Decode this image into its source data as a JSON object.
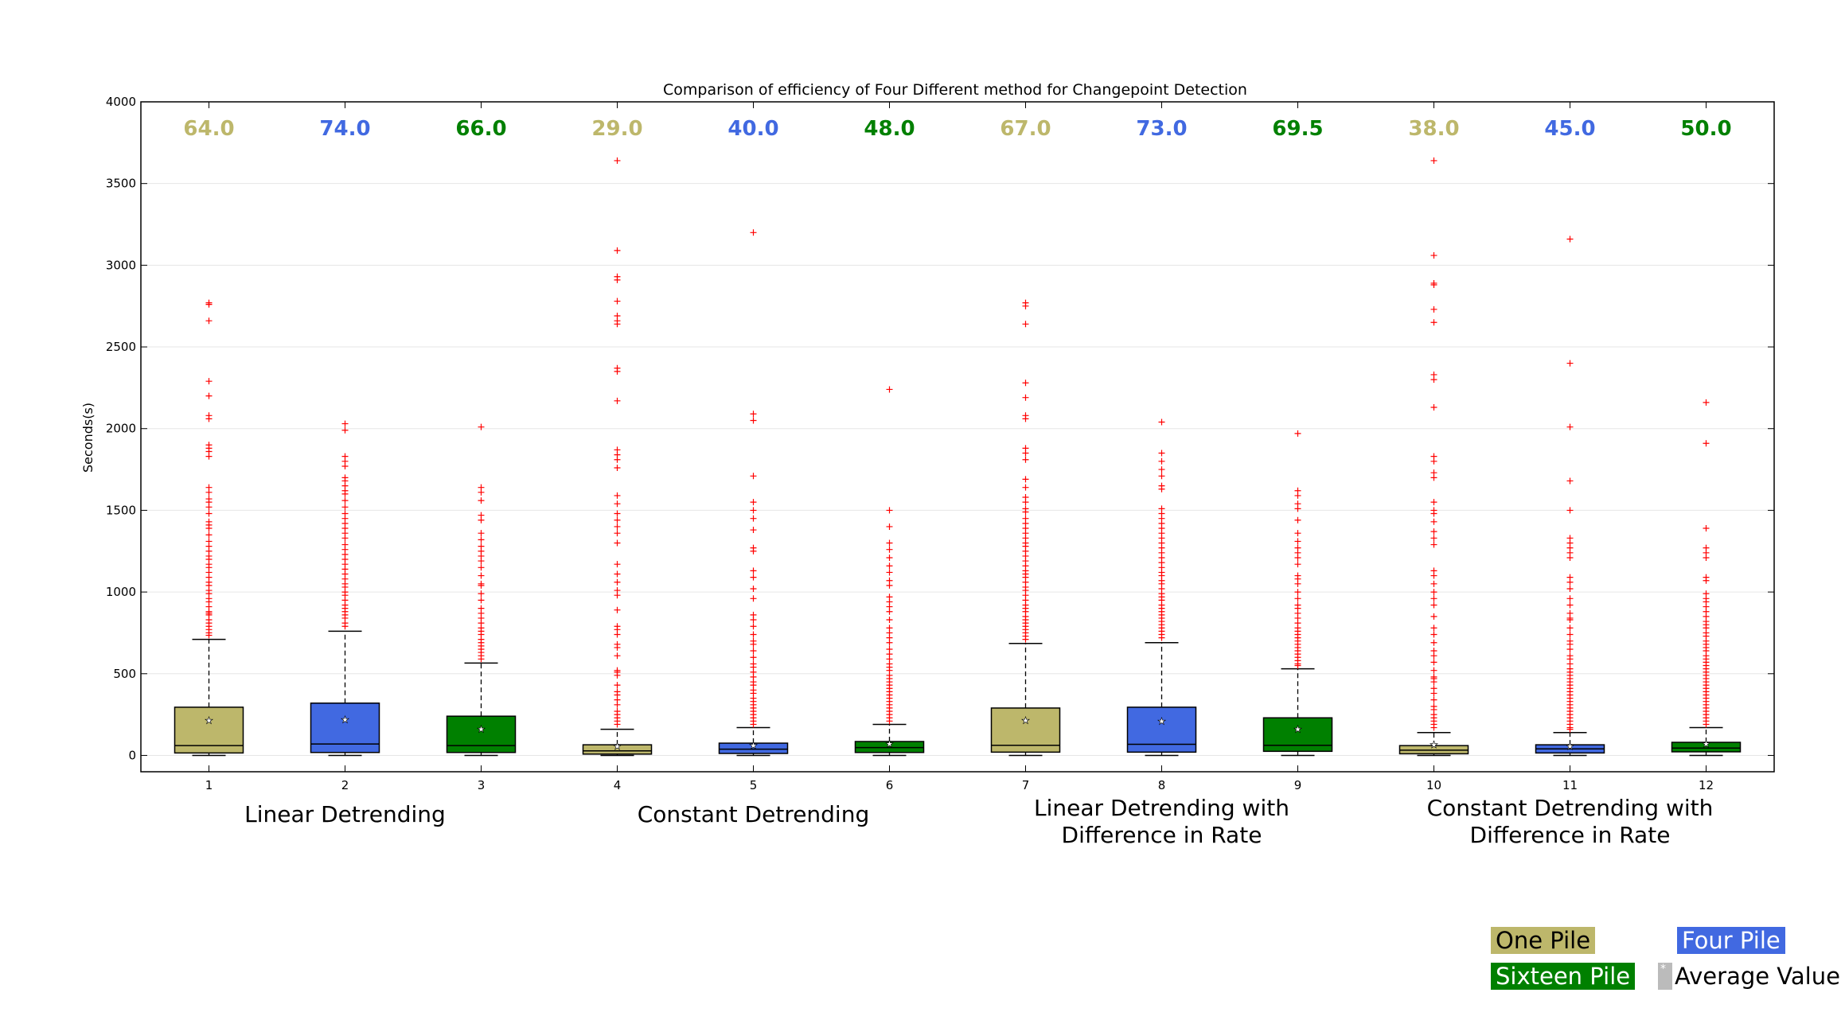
{
  "chart_data": {
    "type": "box",
    "title": "Comparison of efficiency of Four Different method for Changepoint Detection",
    "ylabel": "Seconds(s)",
    "xlabel": "",
    "ylim": [
      -100,
      4000
    ],
    "yticks": [
      0,
      500,
      1000,
      1500,
      2000,
      2500,
      3000,
      3500,
      4000
    ],
    "categories": [
      "1",
      "2",
      "3",
      "4",
      "5",
      "6",
      "7",
      "8",
      "9",
      "10",
      "11",
      "12"
    ],
    "group_labels": [
      {
        "lines": [
          "Linear Detrending"
        ],
        "center": 2
      },
      {
        "lines": [
          "Constant Detrending"
        ],
        "center": 5
      },
      {
        "lines": [
          "Linear Detrending with",
          "Difference in Rate"
        ],
        "center": 8
      },
      {
        "lines": [
          "Constant Detrending with",
          "Difference in Rate"
        ],
        "center": 11
      }
    ],
    "top_labels": [
      "64.0",
      "74.0",
      "66.0",
      "29.0",
      "40.0",
      "48.0",
      "67.0",
      "73.0",
      "69.5",
      "38.0",
      "45.0",
      "50.0"
    ],
    "colors": {
      "one_pile": "#BDB76B",
      "four_pile": "#4169E1",
      "sixteen_pile": "#008000",
      "outlier": "#ff0000"
    },
    "series_order": [
      "one_pile",
      "four_pile",
      "sixteen_pile",
      "one_pile",
      "four_pile",
      "sixteen_pile",
      "one_pile",
      "four_pile",
      "sixteen_pile",
      "one_pile",
      "four_pile",
      "sixteen_pile"
    ],
    "boxes": [
      {
        "whislo": 0,
        "q1": 15,
        "med": 60,
        "q3": 295,
        "whishi": 710,
        "mean": 220,
        "fliers": [
          2770,
          2760,
          2660,
          2290,
          2200,
          2080,
          2060,
          1900,
          1880,
          1860,
          1830,
          1640,
          1610,
          1570,
          1550,
          1520,
          1480,
          1430,
          1410,
          1390,
          1350,
          1310,
          1280,
          1250,
          1220,
          1200,
          1170,
          1150,
          1120,
          1090,
          1060,
          1040,
          1010,
          990,
          960,
          940,
          910,
          880,
          870,
          860,
          830,
          810,
          790,
          770,
          750,
          735
        ]
      },
      {
        "whislo": 0,
        "q1": 18,
        "med": 70,
        "q3": 320,
        "whishi": 760,
        "mean": 225,
        "fliers": [
          2030,
          1990,
          1830,
          1800,
          1770,
          1700,
          1680,
          1650,
          1620,
          1600,
          1560,
          1520,
          1480,
          1450,
          1420,
          1390,
          1360,
          1330,
          1290,
          1260,
          1230,
          1200,
          1170,
          1140,
          1110,
          1080,
          1050,
          1030,
          1000,
          980,
          950,
          920,
          900,
          880,
          860,
          840,
          810,
          790
        ]
      },
      {
        "whislo": 0,
        "q1": 18,
        "med": 60,
        "q3": 240,
        "whishi": 565,
        "mean": 165,
        "fliers": [
          2010,
          1640,
          1610,
          1560,
          1470,
          1440,
          1360,
          1320,
          1280,
          1250,
          1220,
          1190,
          1150,
          1100,
          1050,
          1040,
          990,
          950,
          900,
          870,
          840,
          810,
          780,
          760,
          740,
          710,
          690,
          670,
          650,
          630,
          610,
          590
        ]
      },
      {
        "whislo": 0,
        "q1": 8,
        "med": 28,
        "q3": 65,
        "whishi": 160,
        "mean": 60,
        "fliers": [
          3640,
          3090,
          2930,
          2910,
          2780,
          2690,
          2660,
          2640,
          2370,
          2350,
          2170,
          1870,
          1840,
          1810,
          1760,
          1590,
          1540,
          1480,
          1440,
          1400,
          1360,
          1300,
          1170,
          1110,
          1060,
          1010,
          980,
          890,
          790,
          770,
          740,
          680,
          660,
          610,
          520,
          510,
          490,
          430,
          390,
          370,
          340,
          310,
          270,
          250,
          230,
          210,
          190
        ]
      },
      {
        "whislo": 0,
        "q1": 12,
        "med": 38,
        "q3": 75,
        "whishi": 170,
        "mean": 65,
        "fliers": [
          3200,
          2090,
          2050,
          1710,
          1550,
          1500,
          1450,
          1380,
          1270,
          1250,
          1130,
          1090,
          1020,
          960,
          860,
          830,
          790,
          740,
          700,
          680,
          640,
          600,
          560,
          540,
          510,
          480,
          450,
          430,
          400,
          380,
          350,
          330,
          310,
          290,
          270,
          250,
          230,
          210,
          190
        ]
      },
      {
        "whislo": 0,
        "q1": 18,
        "med": 48,
        "q3": 85,
        "whishi": 190,
        "mean": 75,
        "fliers": [
          2240,
          1500,
          1400,
          1300,
          1260,
          1210,
          1160,
          1120,
          1070,
          1040,
          970,
          940,
          910,
          880,
          830,
          780,
          750,
          720,
          690,
          650,
          620,
          590,
          560,
          540,
          520,
          490,
          470,
          450,
          430,
          410,
          390,
          370,
          350,
          330,
          310,
          290,
          270,
          250,
          230,
          210
        ]
      },
      {
        "whislo": 0,
        "q1": 20,
        "med": 62,
        "q3": 290,
        "whishi": 685,
        "mean": 220,
        "fliers": [
          2770,
          2750,
          2640,
          2280,
          2190,
          2080,
          2060,
          1880,
          1850,
          1810,
          1690,
          1640,
          1580,
          1550,
          1510,
          1490,
          1450,
          1420,
          1390,
          1360,
          1330,
          1300,
          1280,
          1250,
          1220,
          1190,
          1160,
          1130,
          1110,
          1090,
          1060,
          1030,
          1010,
          980,
          950,
          920,
          900,
          880,
          850,
          830,
          810,
          790,
          770,
          750,
          730,
          710
        ]
      },
      {
        "whislo": 0,
        "q1": 20,
        "med": 68,
        "q3": 295,
        "whishi": 690,
        "mean": 215,
        "fliers": [
          2040,
          1850,
          1800,
          1750,
          1710,
          1650,
          1630,
          1510,
          1480,
          1450,
          1420,
          1390,
          1360,
          1330,
          1300,
          1270,
          1240,
          1210,
          1180,
          1150,
          1120,
          1100,
          1070,
          1050,
          1020,
          990,
          970,
          950,
          920,
          900,
          880,
          860,
          840,
          820,
          800,
          780,
          760,
          740,
          720
        ]
      },
      {
        "whislo": 0,
        "q1": 25,
        "med": 62,
        "q3": 230,
        "whishi": 530,
        "mean": 165,
        "fliers": [
          1970,
          1620,
          1590,
          1540,
          1510,
          1440,
          1360,
          1310,
          1270,
          1240,
          1210,
          1170,
          1100,
          1080,
          1050,
          1000,
          960,
          920,
          900,
          870,
          840,
          810,
          780,
          760,
          740,
          720,
          700,
          680,
          660,
          640,
          620,
          600,
          580,
          560,
          550
        ]
      },
      {
        "whislo": 0,
        "q1": 10,
        "med": 32,
        "q3": 60,
        "whishi": 140,
        "mean": 70,
        "fliers": [
          3640,
          3060,
          2890,
          2880,
          2730,
          2650,
          2330,
          2300,
          2130,
          1830,
          1800,
          1730,
          1700,
          1550,
          1500,
          1480,
          1430,
          1370,
          1330,
          1290,
          1130,
          1100,
          1050,
          1000,
          960,
          920,
          850,
          780,
          740,
          690,
          640,
          610,
          570,
          520,
          480,
          470,
          450,
          410,
          380,
          340,
          300,
          280,
          250,
          230,
          210,
          190,
          170
        ]
      },
      {
        "whislo": 0,
        "q1": 15,
        "med": 40,
        "q3": 65,
        "whishi": 140,
        "mean": 60,
        "fliers": [
          3160,
          2400,
          2010,
          1680,
          1500,
          1330,
          1300,
          1270,
          1240,
          1210,
          1090,
          1060,
          1020,
          960,
          920,
          870,
          840,
          830,
          780,
          740,
          700,
          680,
          650,
          610,
          590,
          560,
          530,
          510,
          490,
          470,
          450,
          430,
          410,
          390,
          370,
          350,
          330,
          310,
          290,
          270,
          250,
          230,
          210,
          190,
          170,
          160
        ]
      },
      {
        "whislo": 0,
        "q1": 22,
        "med": 45,
        "q3": 80,
        "whishi": 170,
        "mean": 75,
        "fliers": [
          2160,
          1910,
          1390,
          1270,
          1240,
          1210,
          1090,
          1070,
          990,
          960,
          940,
          910,
          880,
          850,
          820,
          800,
          780,
          750,
          730,
          700,
          680,
          660,
          640,
          610,
          590,
          570,
          550,
          530,
          510,
          490,
          470,
          450,
          430,
          410,
          390,
          370,
          350,
          330,
          310,
          290,
          270,
          250,
          230,
          210,
          190
        ]
      }
    ]
  },
  "legend": {
    "one_pile": "One Pile",
    "four_pile": "Four Pile",
    "sixteen_pile": "Sixteen Pile",
    "average_value": "Average Value",
    "average_swatch_glyph": "*"
  }
}
